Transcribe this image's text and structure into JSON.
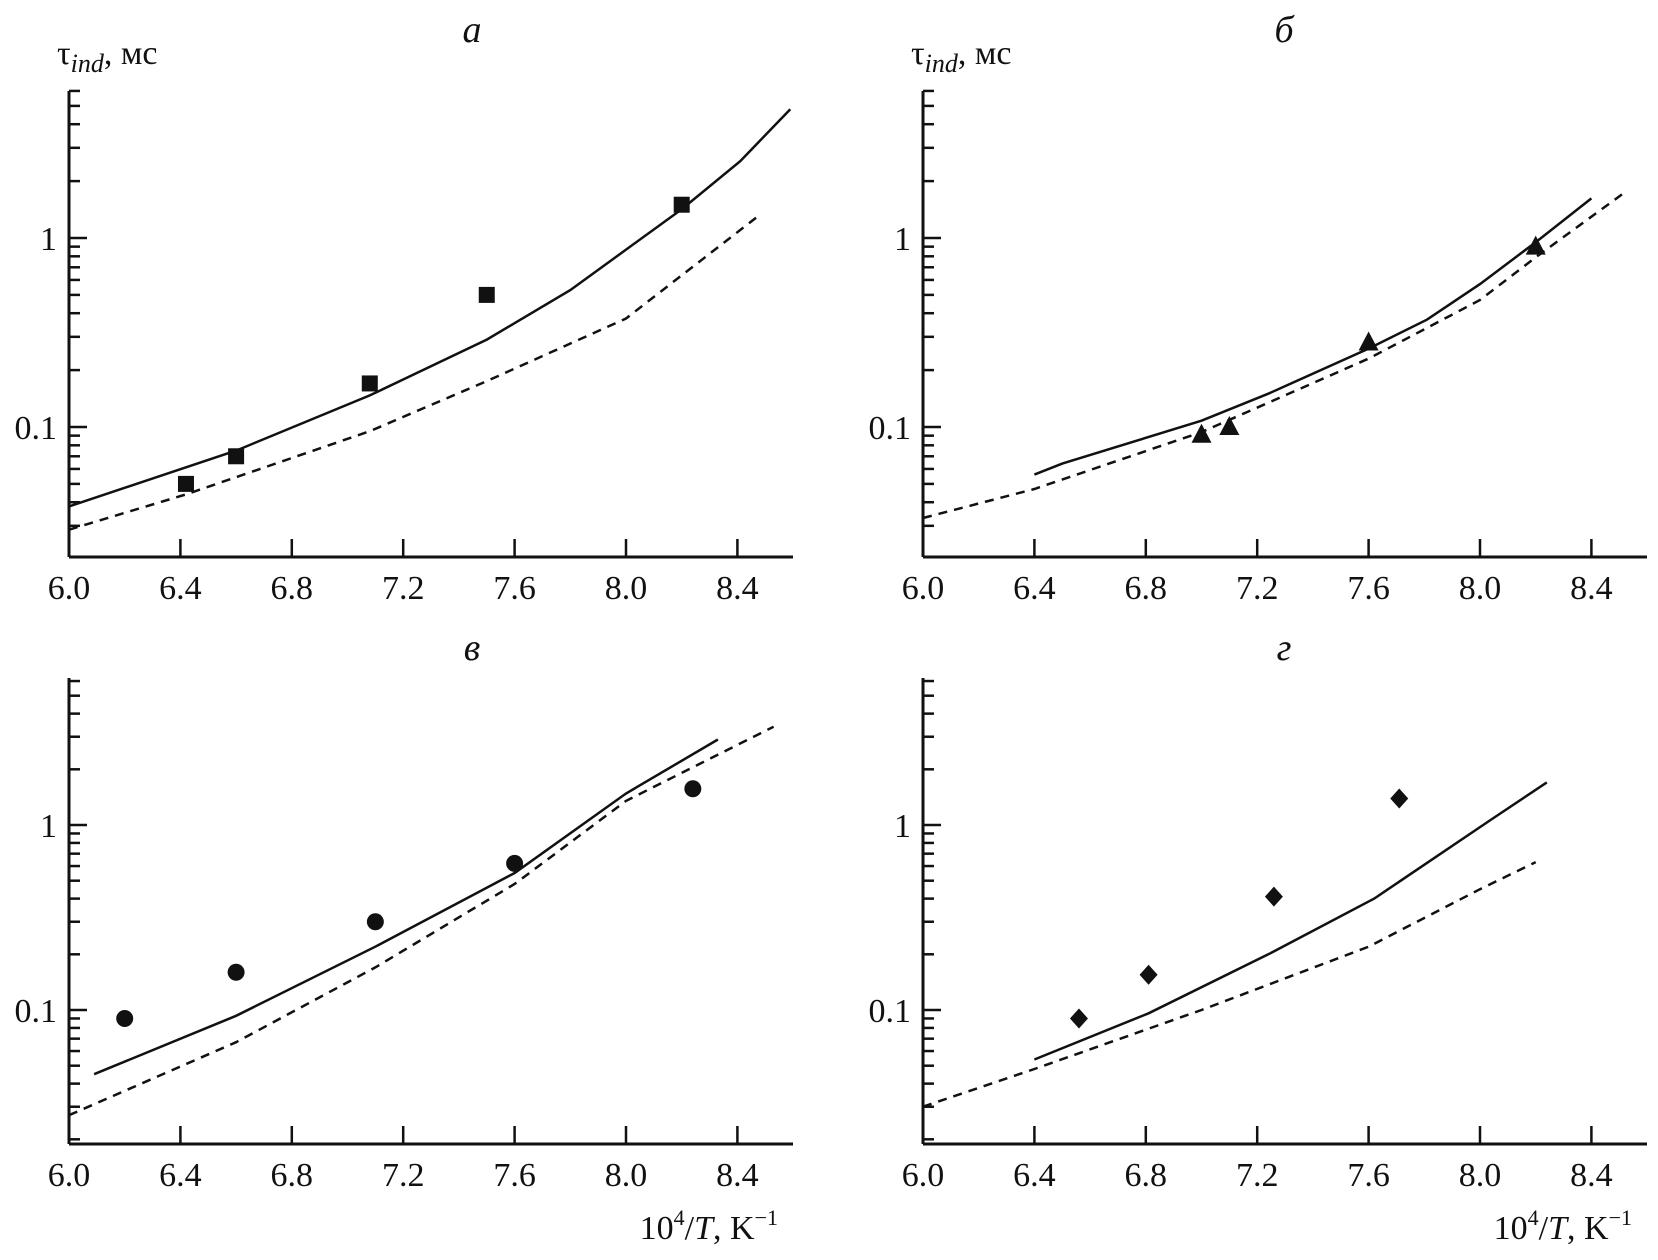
{
  "chart_data": [
    {
      "type": "line",
      "panel_label": "а",
      "ylabel_main": "τ",
      "ylabel_sub": "ind",
      "ylabel_unit": ", мс",
      "xlabel": "",
      "xlim": [
        6.0,
        8.62
      ],
      "ylim": [
        0.02,
        6
      ],
      "yscale": "log",
      "xticks": [
        "6.0",
        "6.4",
        "6.8",
        "7.2",
        "7.6",
        "8.0",
        "8.4"
      ],
      "yticks": [
        "0.1",
        "1"
      ],
      "marker": "square",
      "series": [
        {
          "name": "experiment",
          "style": "markers",
          "x": [
            6.42,
            6.6,
            7.08,
            7.5,
            8.2
          ],
          "y": [
            0.05,
            0.07,
            0.17,
            0.5,
            1.5
          ]
        },
        {
          "name": "model-solid",
          "style": "solid",
          "x": [
            6.0,
            6.6,
            7.08,
            7.5,
            7.8,
            8.2,
            8.41,
            8.59
          ],
          "y": [
            0.038,
            0.075,
            0.147,
            0.29,
            0.53,
            1.42,
            2.55,
            4.8
          ]
        },
        {
          "name": "model-dashed",
          "style": "dashed",
          "x": [
            6.0,
            6.42,
            7.08,
            7.5,
            8.0,
            8.47
          ],
          "y": [
            0.0286,
            0.044,
            0.095,
            0.175,
            0.375,
            1.29
          ]
        }
      ]
    },
    {
      "type": "line",
      "panel_label": "б",
      "ylabel_main": "τ",
      "ylabel_sub": "ind",
      "ylabel_unit": ", мс",
      "xlabel": "",
      "xlim": [
        6.0,
        8.62
      ],
      "ylim": [
        0.02,
        6
      ],
      "yscale": "log",
      "xticks": [
        "6.0",
        "6.4",
        "6.8",
        "7.2",
        "7.6",
        "8.0",
        "8.4"
      ],
      "yticks": [
        "0.1",
        "1"
      ],
      "marker": "triangle",
      "series": [
        {
          "name": "experiment",
          "style": "markers",
          "x": [
            7.0,
            7.1,
            7.6,
            8.2
          ],
          "y": [
            0.091,
            0.1,
            0.28,
            0.9
          ]
        },
        {
          "name": "model-solid",
          "style": "solid",
          "x": [
            6.4,
            6.5,
            7.0,
            7.24,
            7.6,
            7.81,
            8.0,
            8.2,
            8.4
          ],
          "y": [
            0.056,
            0.064,
            0.108,
            0.15,
            0.26,
            0.37,
            0.57,
            0.95,
            1.62
          ]
        },
        {
          "name": "model-dashed",
          "style": "dashed",
          "x": [
            6.0,
            6.4,
            7.0,
            7.6,
            8.0,
            8.2,
            8.51
          ],
          "y": [
            0.033,
            0.047,
            0.094,
            0.23,
            0.47,
            0.79,
            1.7
          ]
        }
      ]
    },
    {
      "type": "line",
      "panel_label": "в",
      "xlabel_main": "10",
      "xlabel_sup": "4",
      "xlabel_T": "/T",
      "xlabel_unit": ", K",
      "xlabel_unit_sup": "−1",
      "xlim": [
        6.0,
        8.62
      ],
      "ylim": [
        0.02,
        6
      ],
      "yscale": "log",
      "xticks": [
        "6.0",
        "6.4",
        "6.8",
        "7.2",
        "7.6",
        "8.0",
        "8.4"
      ],
      "yticks": [
        "0.1",
        "1"
      ],
      "marker": "circle",
      "series": [
        {
          "name": "experiment",
          "style": "markers",
          "x": [
            6.2,
            6.6,
            7.1,
            7.6,
            8.24
          ],
          "y": [
            0.09,
            0.16,
            0.3,
            0.62,
            1.57
          ]
        },
        {
          "name": "model-solid",
          "style": "solid",
          "x": [
            6.09,
            6.6,
            7.1,
            7.6,
            8.0,
            8.33
          ],
          "y": [
            0.045,
            0.093,
            0.22,
            0.55,
            1.48,
            2.9
          ]
        },
        {
          "name": "model-dashed",
          "style": "dashed",
          "x": [
            6.0,
            6.6,
            7.1,
            7.6,
            8.0,
            8.53
          ],
          "y": [
            0.027,
            0.067,
            0.17,
            0.48,
            1.35,
            3.4
          ]
        }
      ]
    },
    {
      "type": "line",
      "panel_label": "г",
      "xlabel_main": "10",
      "xlabel_sup": "4",
      "xlabel_T": "/T",
      "xlabel_unit": ", K",
      "xlabel_unit_sup": "−1",
      "xlim": [
        6.0,
        8.62
      ],
      "ylim": [
        0.02,
        6
      ],
      "yscale": "log",
      "xticks": [
        "6.0",
        "6.4",
        "6.8",
        "7.2",
        "7.6",
        "8.0",
        "8.4"
      ],
      "yticks": [
        "0.1",
        "1"
      ],
      "marker": "diamond",
      "series": [
        {
          "name": "experiment",
          "style": "markers",
          "x": [
            6.56,
            6.81,
            7.26,
            7.71
          ],
          "y": [
            0.09,
            0.155,
            0.41,
            1.39
          ]
        },
        {
          "name": "model-solid",
          "style": "solid",
          "x": [
            6.4,
            6.81,
            7.24,
            7.62,
            8.04,
            8.24
          ],
          "y": [
            0.054,
            0.096,
            0.2,
            0.4,
            1.07,
            1.7
          ]
        },
        {
          "name": "model-dashed",
          "style": "dashed",
          "x": [
            6.0,
            6.4,
            7.0,
            7.6,
            8.0,
            8.2
          ],
          "y": [
            0.03,
            0.048,
            0.1,
            0.22,
            0.45,
            0.63
          ]
        }
      ]
    }
  ]
}
